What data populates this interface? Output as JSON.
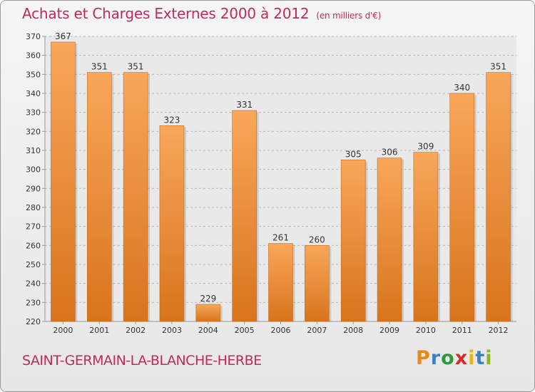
{
  "header": {
    "title": "Achats et Charges Externes 2000 à 2012",
    "unit": "(en milliers d'€)"
  },
  "footer": {
    "commune": "SAINT-GERMAIN-LA-BLANCHE-HERBE",
    "logo_letters": [
      "P",
      "r",
      "o",
      "x",
      "i",
      "t",
      "i"
    ],
    "logo_colors": [
      "#e8891f",
      "#3b82c4",
      "#2f9a3d",
      "#d42c2c",
      "#e8b41f",
      "#3b82c4",
      "#8bb52a"
    ]
  },
  "chart_data": {
    "type": "bar",
    "categories": [
      "2000",
      "2001",
      "2002",
      "2003",
      "2004",
      "2005",
      "2006",
      "2007",
      "2008",
      "2009",
      "2010",
      "2011",
      "2012"
    ],
    "values": [
      367,
      351,
      351,
      323,
      229,
      331,
      261,
      260,
      305,
      306,
      309,
      340,
      351
    ],
    "ylim": [
      220,
      370
    ],
    "yticks": [
      220,
      230,
      240,
      250,
      260,
      270,
      280,
      290,
      300,
      310,
      320,
      330,
      340,
      350,
      360,
      370
    ],
    "grid": "horizontal dashed",
    "bar_color_top": "#f9a75a",
    "bar_color_bottom": "#d8741c"
  }
}
